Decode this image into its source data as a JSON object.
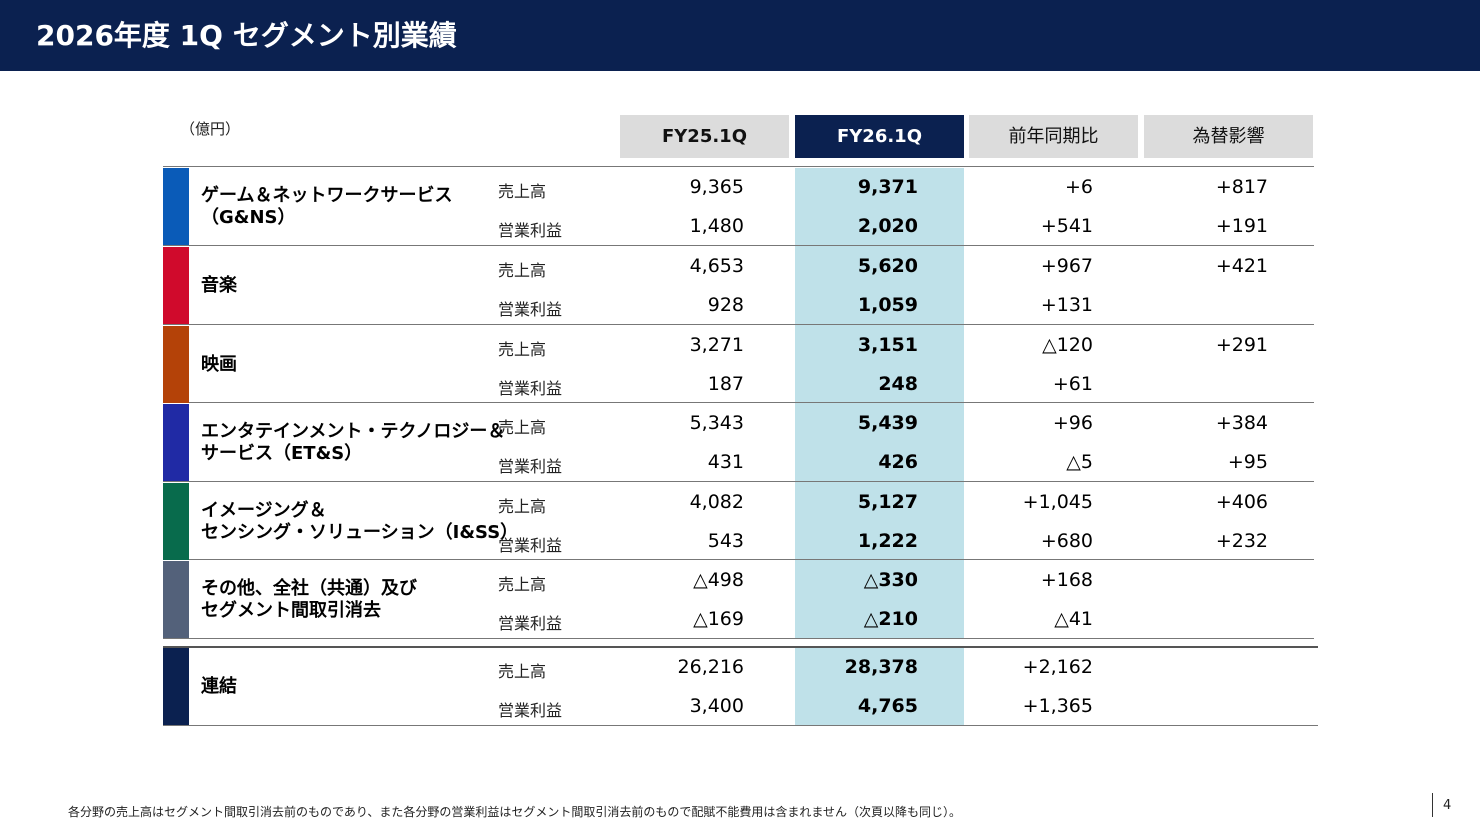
{
  "header": {
    "title": "2026年度 1Q セグメント別業績"
  },
  "unit": "（億円）",
  "columns": [
    "FY25.1Q",
    "FY26.1Q",
    "前年同期比",
    "為替影響"
  ],
  "metrics": {
    "sales": "売上高",
    "op": "営業利益"
  },
  "segments": [
    {
      "name_line1": "ゲーム＆ネットワークサービス",
      "name_line2": "（G&NS）",
      "color": "#0a5bb8",
      "sales": {
        "fy25": "9,365",
        "fy26": "9,371",
        "yoy": "+6",
        "fx": "+817"
      },
      "op": {
        "fy25": "1,480",
        "fy26": "2,020",
        "yoy": "+541",
        "fx": "+191"
      }
    },
    {
      "name_line1": "音楽",
      "name_line2": "",
      "color": "#d00a2c",
      "sales": {
        "fy25": "4,653",
        "fy26": "5,620",
        "yoy": "+967",
        "fx": "+421"
      },
      "op": {
        "fy25": "928",
        "fy26": "1,059",
        "yoy": "+131",
        "fx": ""
      }
    },
    {
      "name_line1": "映画",
      "name_line2": "",
      "color": "#b44208",
      "sales": {
        "fy25": "3,271",
        "fy26": "3,151",
        "yoy": "△120",
        "fx": "+291"
      },
      "op": {
        "fy25": "187",
        "fy26": "248",
        "yoy": "+61",
        "fx": ""
      }
    },
    {
      "name_line1": "エンタテインメント・テクノロジー＆",
      "name_line2": "サービス（ET&S）",
      "color": "#202aa5",
      "sales": {
        "fy25": "5,343",
        "fy26": "5,439",
        "yoy": "+96",
        "fx": "+384"
      },
      "op": {
        "fy25": "431",
        "fy26": "426",
        "yoy": "△5",
        "fx": "+95"
      }
    },
    {
      "name_line1": "イメージング＆",
      "name_line2": "センシング・ソリューション（I&SS）",
      "color": "#086b4c",
      "sales": {
        "fy25": "4,082",
        "fy26": "5,127",
        "yoy": "+1,045",
        "fx": "+406"
      },
      "op": {
        "fy25": "543",
        "fy26": "1,222",
        "yoy": "+680",
        "fx": "+232"
      }
    },
    {
      "name_line1": "その他、全社（共通）及び",
      "name_line2": "セグメント間取引消去",
      "color": "#53617a",
      "sales": {
        "fy25": "△498",
        "fy26": "△330",
        "yoy": "+168",
        "fx": ""
      },
      "op": {
        "fy25": "△169",
        "fy26": "△210",
        "yoy": "△41",
        "fx": ""
      }
    }
  ],
  "consolidated": {
    "name_line1": "連結",
    "color": "#0b2150",
    "sales": {
      "fy25": "26,216",
      "fy26": "28,378",
      "yoy": "+2,162",
      "fx": ""
    },
    "op": {
      "fy25": "3,400",
      "fy26": "4,765",
      "yoy": "+1,365",
      "fx": ""
    }
  },
  "footnote": "各分野の売上高はセグメント間取引消去前のものであり、また各分野の営業利益はセグメント間取引消去前のもので配賦不能費用は含まれません（次頁以降も同じ）。",
  "page_number": "4"
}
